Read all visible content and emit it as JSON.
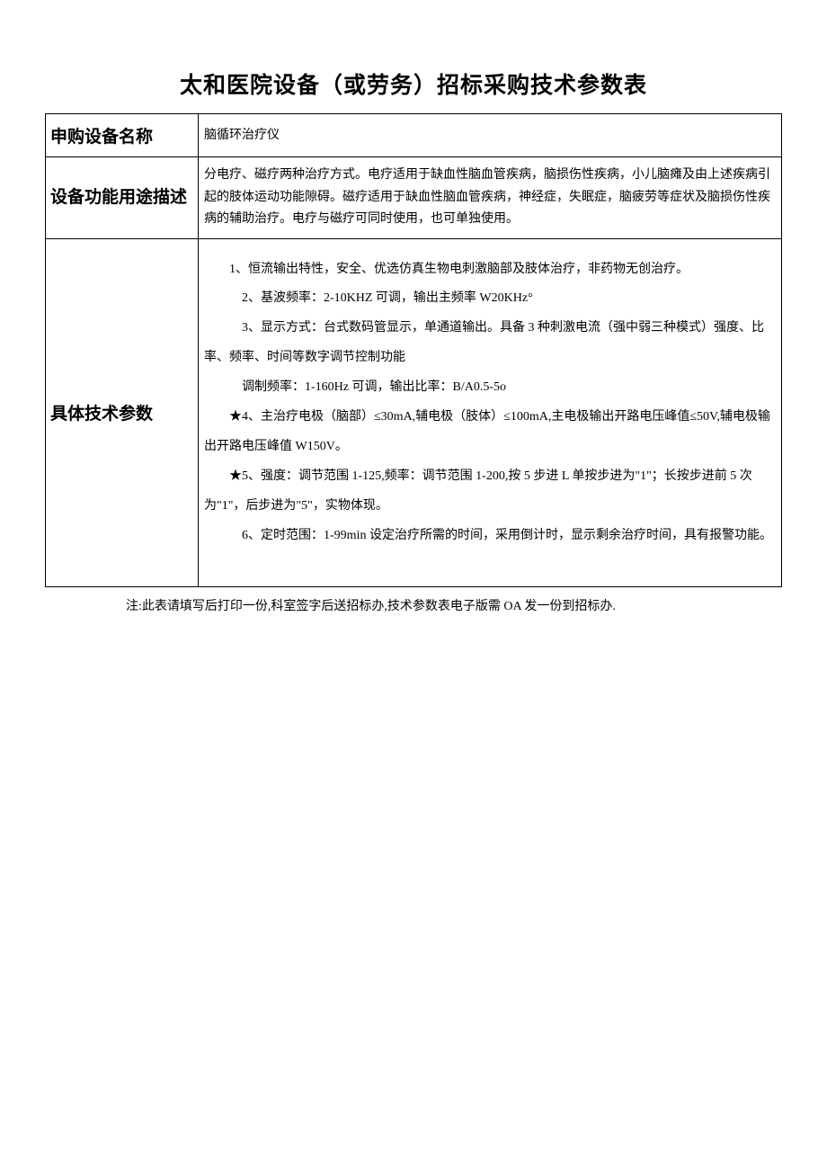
{
  "document": {
    "title": "太和医院设备（或劳务）招标采购技术参数表",
    "footnote": "注:此表请填写后打印一份,科室签字后送招标办,技术参数表电子版需 OA 发一份到招标办.",
    "colors": {
      "background": "#ffffff",
      "text": "#000000",
      "border": "#000000"
    },
    "fonts": {
      "title_size": 25,
      "label_size": 19,
      "content_size": 14,
      "footnote_size": 14
    },
    "rows": {
      "r1": {
        "label": "申购设备名称",
        "value": "脑循环治疗仪"
      },
      "r2": {
        "label": "设备功能用途描述",
        "value": "分电疗、磁疗两种治疗方式。电疗适用于缺血性脑血管疾病，脑损伤性疾病，小儿脑瘫及由上述疾病引起的肢体运动功能隙碍。磁疗适用于缺血性脑血管疾病，神经症，失眠症，脑疲劳等症状及脑损伤性疾病的辅助治疗。电疗与磁疗可同时使用，也可单独使用。"
      },
      "r3": {
        "label": "具体技术参数",
        "specs": {
          "p1": "1、恒流输出特性，安全、优选仿真生物电刺激脑部及肢体治疗，非药物无创治疗。",
          "p2": "2、基波频率：2-10KHZ 可调，输出主频率 W20KHz°",
          "p3": "3、显示方式：台式数码管显示，单通道输出。具备 3 种刺激电流（强中弱三种模式）强度、比率、频率、时间等数字调节控制功能",
          "p4": "调制频率：1-160Hz 可调，输出比率：B/A0.5-5o",
          "p5": "★4、主治疗电极（脑部）≤30mA,辅电极（肢体）≤100mA,主电极输出开路电压峰值≤50V,辅电极输出开路电压峰值 W150V。",
          "p6": "★5、强度：调节范围 1-125,频率：调节范围 1-200,按 5 步进 L 单按步进为\"1\"；长按步进前 5 次为\"1\"，后步进为\"5\"，实物体现。",
          "p7": "6、定时范围：1-99min 设定治疗所需的时间，采用倒计时，显示剩余治疗时间，具有报警功能。"
        }
      }
    }
  }
}
